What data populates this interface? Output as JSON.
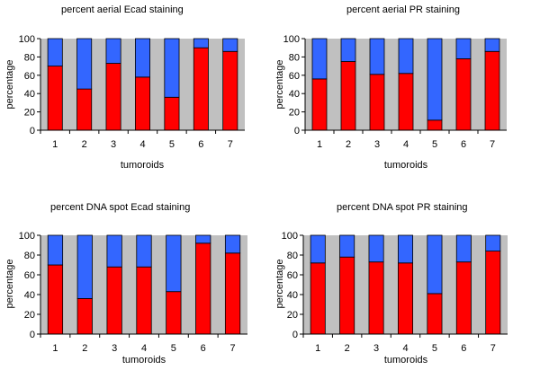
{
  "colors": {
    "plot_bg": "#c0c0c0",
    "bottom_series": "#ff0000",
    "top_series": "#3366ff",
    "outline": "#000000"
  },
  "chart_data": [
    {
      "type": "bar",
      "stacked": true,
      "title": "percent aerial Ecad staining",
      "xlabel": "tumoroids",
      "ylabel": "percentage",
      "categories": [
        "1",
        "2",
        "3",
        "4",
        "5",
        "6",
        "7"
      ],
      "yticks": [
        "0",
        "20",
        "40",
        "60",
        "80",
        "100"
      ],
      "ylim": [
        0,
        100
      ],
      "grid": false,
      "series": [
        {
          "color": "#ff0000",
          "values": [
            70,
            45,
            73,
            58,
            36,
            90,
            86
          ]
        },
        {
          "color": "#3366ff",
          "values": [
            30,
            55,
            27,
            42,
            64,
            10,
            14
          ]
        }
      ]
    },
    {
      "type": "bar",
      "stacked": true,
      "title": "percent aerial PR staining",
      "xlabel": "tumoroids",
      "ylabel": "percentage",
      "categories": [
        "1",
        "2",
        "3",
        "4",
        "5",
        "6",
        "7"
      ],
      "yticks": [
        "0",
        "20",
        "40",
        "60",
        "80",
        "100"
      ],
      "ylim": [
        0,
        100
      ],
      "grid": false,
      "series": [
        {
          "color": "#ff0000",
          "values": [
            56,
            75,
            61,
            62,
            11,
            78,
            86
          ]
        },
        {
          "color": "#3366ff",
          "values": [
            44,
            25,
            39,
            38,
            89,
            22,
            14
          ]
        }
      ]
    },
    {
      "type": "bar",
      "stacked": true,
      "title": "percent DNA spot Ecad staining",
      "xlabel": "tumoroids",
      "ylabel": "percentage",
      "categories": [
        "1",
        "2",
        "3",
        "4",
        "5",
        "6",
        "7"
      ],
      "yticks": [
        "0",
        "20",
        "40",
        "60",
        "80",
        "100"
      ],
      "ylim": [
        0,
        100
      ],
      "grid": false,
      "series": [
        {
          "color": "#ff0000",
          "values": [
            70,
            36,
            68,
            68,
            43,
            92,
            82
          ]
        },
        {
          "color": "#3366ff",
          "values": [
            30,
            64,
            32,
            32,
            57,
            8,
            18
          ]
        }
      ]
    },
    {
      "type": "bar",
      "stacked": true,
      "title": "percent DNA spot PR staining",
      "xlabel": "tumoroids",
      "ylabel": "percentage",
      "categories": [
        "1",
        "2",
        "3",
        "4",
        "5",
        "6",
        "7"
      ],
      "yticks": [
        "0",
        "20",
        "40",
        "60",
        "80",
        "100"
      ],
      "ylim": [
        0,
        100
      ],
      "grid": false,
      "series": [
        {
          "color": "#ff0000",
          "values": [
            72,
            78,
            73,
            72,
            41,
            73,
            84
          ]
        },
        {
          "color": "#3366ff",
          "values": [
            28,
            22,
            27,
            28,
            59,
            27,
            16
          ]
        }
      ]
    }
  ]
}
